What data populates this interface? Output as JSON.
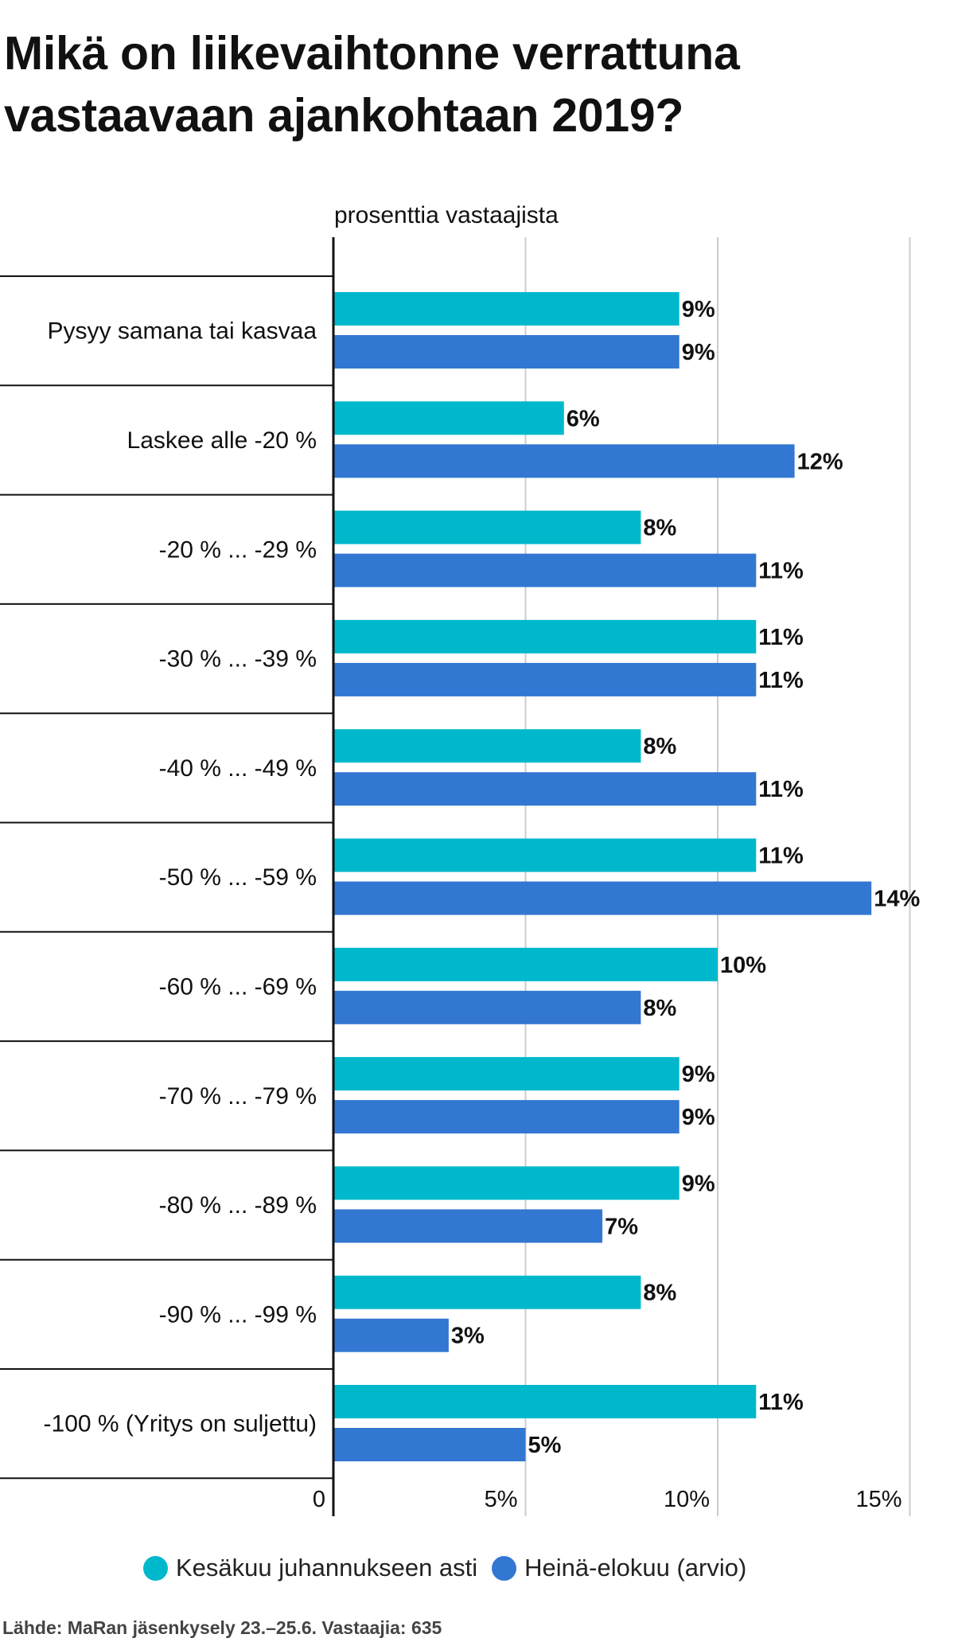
{
  "title": "Mikä on liikevaihtonne verrattuna vastaavaan ajankohtaan 2019?",
  "source": "Lähde: MaRan jäsenkysely 23.–25.6. Vastaajia: 635",
  "colors": {
    "series1": "#00b8cc",
    "series2": "#3277d1",
    "grid": "#cccccc",
    "axis": "#111111",
    "text": "#111111"
  },
  "chart_data": {
    "type": "bar",
    "orientation": "horizontal",
    "title": "Mikä on liikevaihtonne verrattuna vastaavaan ajankohtaan 2019?",
    "subtitle": "prosenttia vastaajista",
    "categories": [
      "Pysyy samana tai kasvaa",
      "Laskee alle -20 %",
      "-20 % ... -29 %",
      "-30 % ... -39 %",
      "-40 % ... -49 %",
      "-50 % ... -59 %",
      "-60 % ... -69 %",
      "-70 % ... -79 %",
      "-80 % ... -89 %",
      "-90 % ... -99 %",
      "-100 % (Yritys on suljettu)"
    ],
    "series": [
      {
        "name": "Kesäkuu juhannukseen asti",
        "color": "#00b8cc",
        "values": [
          9,
          6,
          8,
          11,
          8,
          11,
          10,
          9,
          9,
          8,
          11
        ],
        "labels": [
          "9%",
          "6%",
          "8%",
          "11%",
          "8%",
          "11%",
          "10%",
          "9%",
          "9%",
          "8%",
          "11%"
        ]
      },
      {
        "name": "Heinä-elokuu (arvio)",
        "color": "#3277d1",
        "values": [
          9,
          12,
          11,
          11,
          11,
          14,
          8,
          9,
          7,
          3,
          5
        ],
        "labels": [
          "9%",
          "12%",
          "11%",
          "11%",
          "11%",
          "14%",
          "8%",
          "9%",
          "7%",
          "3%",
          "5%"
        ]
      }
    ],
    "x_ticks": [
      {
        "value": 0,
        "label": "0"
      },
      {
        "value": 5,
        "label": "5%"
      },
      {
        "value": 10,
        "label": "10%"
      },
      {
        "value": 15,
        "label": "15%"
      }
    ],
    "xlim": [
      0,
      15
    ],
    "grid": true,
    "legend_position": "bottom"
  }
}
